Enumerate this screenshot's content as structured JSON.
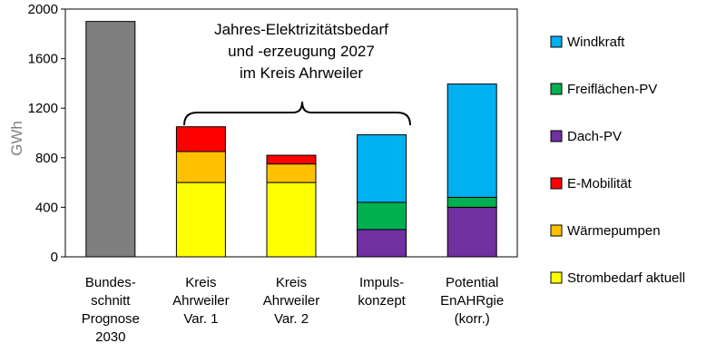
{
  "chart_data": {
    "type": "bar",
    "stacked": true,
    "ylabel": "GWh",
    "xlabel": "",
    "ylim": [
      0,
      2000
    ],
    "yticks": [
      0,
      400,
      800,
      1200,
      1600,
      2000
    ],
    "grid": false,
    "legend_position": "right",
    "categories": [
      [
        "Bundes-",
        "schnitt",
        "Prognose",
        "2030"
      ],
      [
        "Kreis",
        "Ahrweiler",
        "Var. 1"
      ],
      [
        "Kreis",
        "Ahrweiler",
        "Var. 2"
      ],
      [
        "Impuls-",
        "konzept"
      ],
      [
        "Potential",
        "EnAHRgie",
        "(korr.)"
      ]
    ],
    "annotation": [
      "Jahres-Elektrizitätsbedarf",
      "und -erzeugung 2027",
      "im Kreis Ahrweiler"
    ],
    "series": [
      {
        "name": "Strombedarf aktuell",
        "color": "#ffff00",
        "values": [
          0,
          600,
          600,
          0,
          0
        ]
      },
      {
        "name": "Wärmepumpen",
        "color": "#ffc000",
        "values": [
          0,
          250,
          150,
          0,
          0
        ]
      },
      {
        "name": "E-Mobilität",
        "color": "#ff0000",
        "values": [
          0,
          200,
          70,
          0,
          0
        ]
      },
      {
        "name": "Dach-PV",
        "color": "#7030a0",
        "values": [
          0,
          0,
          0,
          220,
          400
        ]
      },
      {
        "name": "Freiflächen-PV",
        "color": "#00b050",
        "values": [
          0,
          0,
          0,
          220,
          80
        ]
      },
      {
        "name": "Windkraft",
        "color": "#00b0f0",
        "values": [
          0,
          0,
          0,
          545,
          915
        ]
      },
      {
        "name": "",
        "color": "#7f7f7f",
        "values": [
          1900,
          0,
          0,
          0,
          0
        ]
      }
    ],
    "legend_order": [
      "Windkraft",
      "Freiflächen-PV",
      "Dach-PV",
      "E-Mobilität",
      "Wärmepumpen",
      "Strombedarf aktuell"
    ]
  }
}
